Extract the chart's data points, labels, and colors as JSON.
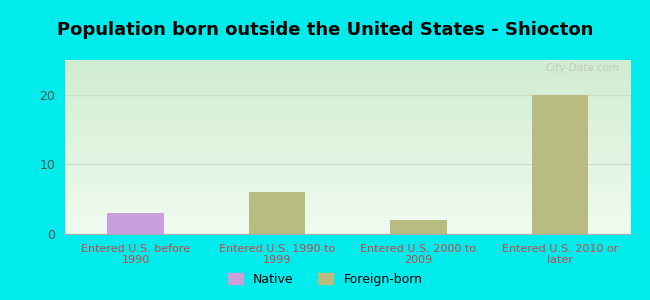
{
  "title": "Population born outside the United States - Shiocton",
  "background_color": "#00ECEC",
  "plot_bg_color": "#e8f5e8",
  "categories": [
    "Entered U.S. before\n1990",
    "Entered U.S. 1990 to\n1999",
    "Entered U.S. 2000 to\n2009",
    "Entered U.S. 2010 or\nlater"
  ],
  "native_values": [
    3,
    0,
    0,
    0
  ],
  "foreign_values": [
    0,
    6,
    2,
    20
  ],
  "native_color": "#c9a0dc",
  "foreign_color": "#b8bc80",
  "bar_width": 0.4,
  "ylim": [
    0,
    25
  ],
  "yticks": [
    0,
    10,
    20
  ],
  "tick_label_color": "#555555",
  "axis_label_color": "#cc4444",
  "title_fontsize": 13,
  "legend_native": "Native",
  "legend_foreign": "Foreign-born",
  "watermark": "City-Data.com",
  "grid_color": "#ccddcc"
}
